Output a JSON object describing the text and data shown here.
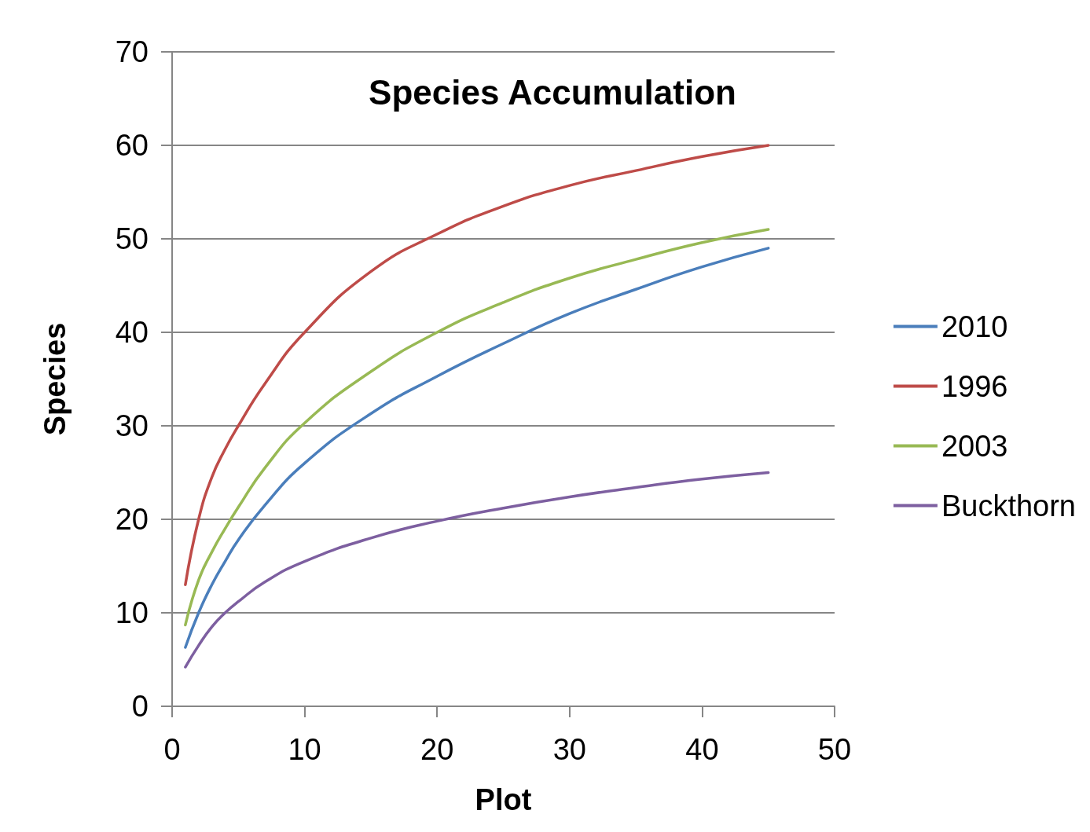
{
  "chart_data": {
    "type": "line",
    "title": "Species Accumulation",
    "xlabel": "Plot",
    "ylabel": "Species",
    "x": [
      1,
      2,
      3,
      4,
      5,
      7,
      10,
      15,
      20,
      25,
      30,
      35,
      40,
      45
    ],
    "series": [
      {
        "name": "2010",
        "color": "#4a7ebb",
        "values": [
          6.3,
          10,
          13,
          15.5,
          17.8,
          21.5,
          26,
          31.3,
          35.3,
          38.8,
          42,
          44.6,
          47,
          49
        ]
      },
      {
        "name": "1996",
        "color": "#be4b48",
        "values": [
          13,
          20,
          24.5,
          27.5,
          30,
          34.5,
          40,
          46.5,
          50.5,
          53.5,
          55.7,
          57.3,
          58.8,
          60
        ]
      },
      {
        "name": "2003",
        "color": "#98b954",
        "values": [
          8.7,
          13.5,
          16.5,
          19,
          21.3,
          25.5,
          30.3,
          35.8,
          40,
          43.2,
          45.8,
          47.8,
          49.6,
          51
        ]
      },
      {
        "name": "Buckthorn",
        "color": "#7d5fa0",
        "values": [
          4.2,
          6.5,
          8.5,
          10,
          11.2,
          13.3,
          15.5,
          18,
          19.8,
          21.2,
          22.4,
          23.4,
          24.3,
          25
        ]
      }
    ],
    "xlim": [
      0,
      50
    ],
    "xticks": [
      0,
      10,
      20,
      30,
      40,
      50
    ],
    "ylim": [
      0,
      70
    ],
    "yticks": [
      0,
      10,
      20,
      30,
      40,
      50,
      60,
      70
    ],
    "grid": "y",
    "legend": "right",
    "line_style": "solid"
  }
}
